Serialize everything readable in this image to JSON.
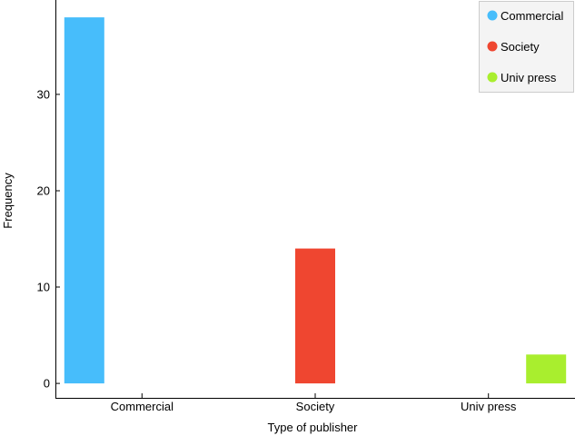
{
  "chart_data": {
    "type": "bar",
    "categories": [
      "Commercial",
      "Society",
      "Univ press"
    ],
    "values": [
      38,
      14,
      3
    ],
    "colors": [
      "#47bdfb",
      "#ef4630",
      "#a9ee2e"
    ],
    "xlabel": "Type of publisher",
    "ylabel": "Frequency",
    "ylim": [
      -1.5,
      39.8
    ],
    "yticks": [
      0,
      10,
      20,
      30
    ],
    "grid": false,
    "legend": {
      "placement": "top-right",
      "entries": [
        "Commercial",
        "Society",
        "Univ press"
      ]
    }
  }
}
